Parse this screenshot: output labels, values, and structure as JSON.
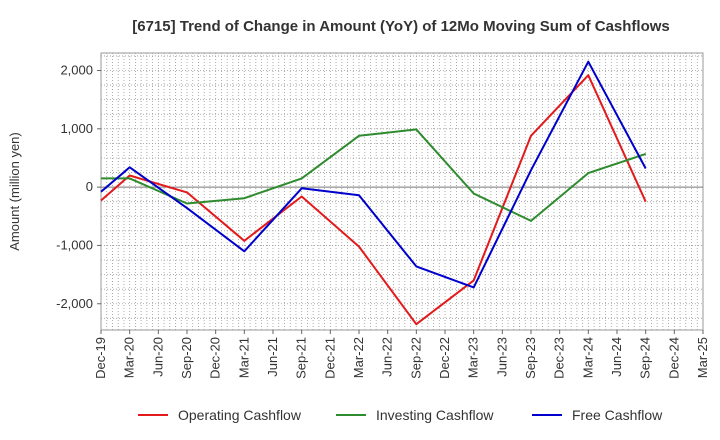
{
  "chart_data": {
    "type": "line",
    "title": "[6715]  Trend of Change in Amount (YoY) of 12Mo Moving Sum of Cashflows",
    "xlabel": "",
    "ylabel": "Amount (million yen)",
    "ylim": [
      -2450,
      2300
    ],
    "yticks": [
      2000,
      1000,
      0,
      -1000,
      -2000
    ],
    "ytick_labels": [
      "2,000",
      "1,000",
      "0",
      "-1,000",
      "-2,000"
    ],
    "grid": true,
    "legend_position": "bottom",
    "categories": [
      "Dec-19",
      "Mar-20",
      "Jun-20",
      "Sep-20",
      "Dec-20",
      "Mar-21",
      "Jun-21",
      "Sep-21",
      "Dec-21",
      "Mar-22",
      "Jun-22",
      "Sep-22",
      "Dec-22",
      "Mar-23",
      "Jun-23",
      "Sep-23",
      "Dec-23",
      "Mar-24",
      "Jun-24",
      "Sep-24",
      "Dec-24",
      "Mar-25"
    ],
    "series": [
      {
        "name": "Operating Cashflow",
        "color": "#e31a1c",
        "values": [
          -230,
          200,
          null,
          -90,
          null,
          -920,
          null,
          -160,
          null,
          -1020,
          null,
          -2350,
          null,
          -1600,
          null,
          880,
          null,
          1920,
          null,
          -250,
          null,
          null
        ]
      },
      {
        "name": "Investing Cashflow",
        "color": "#2e8b2e",
        "values": [
          150,
          150,
          null,
          -280,
          null,
          -190,
          null,
          150,
          null,
          880,
          null,
          990,
          null,
          -110,
          null,
          -580,
          null,
          240,
          null,
          570,
          null,
          null
        ]
      },
      {
        "name": "Free Cashflow",
        "color": "#0000cc",
        "values": [
          -80,
          340,
          null,
          -360,
          null,
          -1100,
          null,
          -20,
          null,
          -140,
          null,
          -1360,
          null,
          -1720,
          null,
          290,
          null,
          2150,
          null,
          320,
          null,
          null
        ]
      }
    ]
  }
}
